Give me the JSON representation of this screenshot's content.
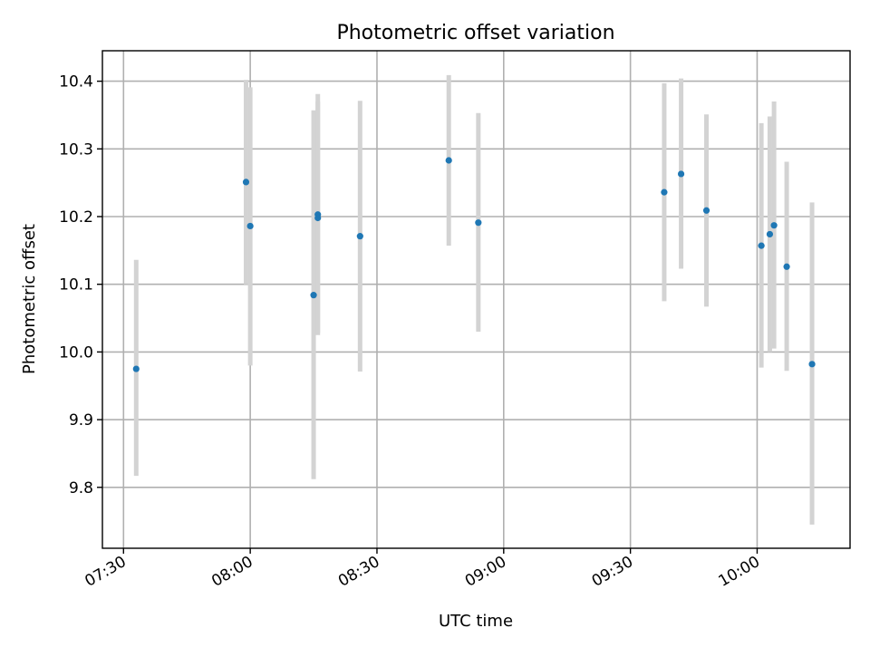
{
  "chart_data": {
    "type": "scatter",
    "title": "Photometric offset variation",
    "xlabel": "UTC time",
    "ylabel": "Photometric offset",
    "x_tick_labels": [
      "07:30",
      "08:00",
      "08:30",
      "09:00",
      "09:30",
      "10:00"
    ],
    "y_tick_labels": [
      "9.8",
      "9.9",
      "10.0",
      "10.1",
      "10.2",
      "10.3",
      "10.4"
    ],
    "y_ticks": [
      9.8,
      9.9,
      10.0,
      10.1,
      10.2,
      10.3,
      10.4
    ],
    "xlim": [
      "07:25",
      "10:22"
    ],
    "ylim": [
      9.71,
      10.445
    ],
    "grid": true,
    "points": [
      {
        "x": "07:33",
        "y": 9.975,
        "low": 9.817,
        "high": 10.136
      },
      {
        "x": "07:59",
        "y": 10.251,
        "low": 10.1,
        "high": 10.402
      },
      {
        "x": "08:00",
        "y": 10.186,
        "low": 9.98,
        "high": 10.391
      },
      {
        "x": "08:15",
        "y": 10.084,
        "low": 9.812,
        "high": 10.357
      },
      {
        "x": "08:16",
        "y": 10.203,
        "low": 10.025,
        "high": 10.381
      },
      {
        "x": "08:16",
        "y": 10.198,
        "low": 10.028,
        "high": 10.37
      },
      {
        "x": "08:26",
        "y": 10.171,
        "low": 9.971,
        "high": 10.371
      },
      {
        "x": "08:47",
        "y": 10.283,
        "low": 10.157,
        "high": 10.409
      },
      {
        "x": "08:54",
        "y": 10.191,
        "low": 10.03,
        "high": 10.353
      },
      {
        "x": "09:38",
        "y": 10.236,
        "low": 10.075,
        "high": 10.397
      },
      {
        "x": "09:42",
        "y": 10.263,
        "low": 10.123,
        "high": 10.404
      },
      {
        "x": "09:48",
        "y": 10.209,
        "low": 10.067,
        "high": 10.351
      },
      {
        "x": "10:01",
        "y": 10.157,
        "low": 9.977,
        "high": 10.338
      },
      {
        "x": "10:03",
        "y": 10.174,
        "low": 10.0,
        "high": 10.348
      },
      {
        "x": "10:04",
        "y": 10.187,
        "low": 10.005,
        "high": 10.37
      },
      {
        "x": "10:07",
        "y": 10.126,
        "low": 9.972,
        "high": 10.281
      },
      {
        "x": "10:13",
        "y": 9.982,
        "low": 9.745,
        "high": 10.221
      }
    ],
    "colors": {
      "point": "#1f77b4",
      "errorbar": "#d3d3d3",
      "grid": "#b0b0b0"
    }
  }
}
